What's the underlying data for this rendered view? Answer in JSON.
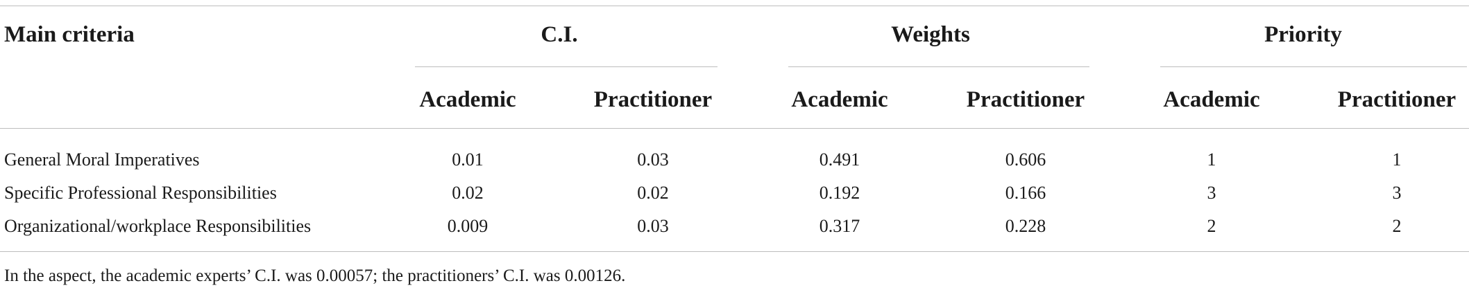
{
  "table": {
    "header": {
      "main_criteria": "Main criteria",
      "groups": [
        {
          "label": "C.I.",
          "sub": [
            "Academic",
            "Practitioner"
          ]
        },
        {
          "label": "Weights",
          "sub": [
            "Academic",
            "Practitioner"
          ]
        },
        {
          "label": "Priority",
          "sub": [
            "Academic",
            "Practitioner"
          ]
        }
      ]
    },
    "rows": [
      {
        "criterion": "General Moral Imperatives",
        "ci_academic": "0.01",
        "ci_practitioner": "0.03",
        "weights_academic": "0.491",
        "weights_practitioner": "0.606",
        "priority_academic": "1",
        "priority_practitioner": "1"
      },
      {
        "criterion": "Specific Professional Responsibilities",
        "ci_academic": "0.02",
        "ci_practitioner": "0.02",
        "weights_academic": "0.192",
        "weights_practitioner": "0.166",
        "priority_academic": "3",
        "priority_practitioner": "3"
      },
      {
        "criterion": "Organizational/workplace Responsibilities",
        "ci_academic": "0.009",
        "ci_practitioner": "0.03",
        "weights_academic": "0.317",
        "weights_practitioner": "0.228",
        "priority_academic": "2",
        "priority_practitioner": "2"
      }
    ],
    "footnote": "In the aspect, the academic experts’ C.I. was 0.00057; the practitioners’ C.I. was 0.00126."
  }
}
